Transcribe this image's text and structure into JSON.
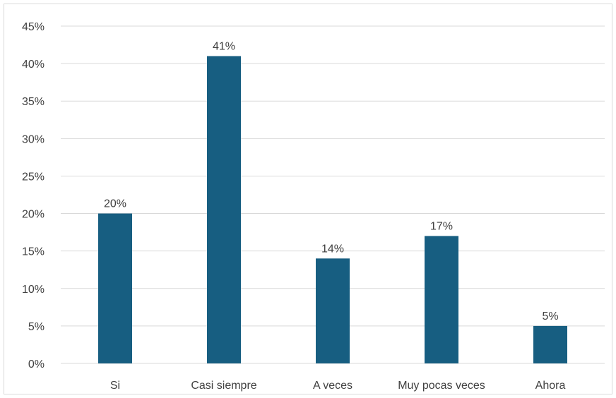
{
  "chart_data": {
    "type": "bar",
    "title": "",
    "xlabel": "",
    "ylabel": "",
    "categories": [
      "Si",
      "Casi siempre",
      "A veces",
      "Muy pocas veces",
      "Ahora"
    ],
    "values": [
      20,
      41,
      14,
      17,
      5
    ],
    "data_labels": [
      "20%",
      "41%",
      "14%",
      "17%",
      "5%"
    ],
    "ylim": [
      0,
      45
    ],
    "y_ticks": [
      0,
      5,
      10,
      15,
      20,
      25,
      30,
      35,
      40,
      45
    ],
    "y_tick_labels": [
      "0%",
      "5%",
      "10%",
      "15%",
      "20%",
      "25%",
      "30%",
      "35%",
      "40%",
      "45%"
    ],
    "grid": true,
    "legend": "none",
    "colors": {
      "bar": "#175e81",
      "grid": "#d9d9d9",
      "text": "#404040"
    }
  }
}
